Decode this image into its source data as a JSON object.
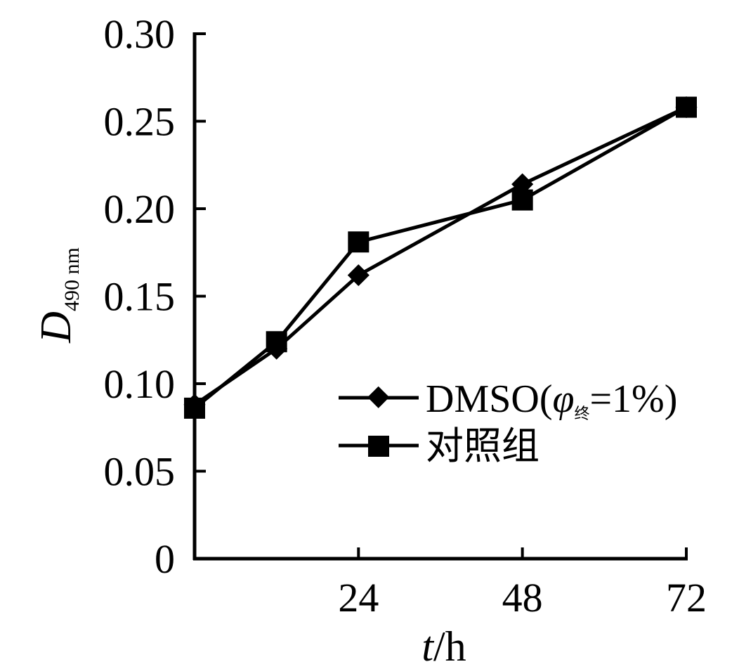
{
  "chart_data": {
    "type": "line",
    "x": [
      0,
      12,
      24,
      48,
      72
    ],
    "xlim": [
      0,
      72
    ],
    "ylim": [
      0,
      0.3
    ],
    "xticks": [
      24,
      48,
      72
    ],
    "xtick_labels": [
      "24",
      "48",
      "72"
    ],
    "yticks": [
      0,
      0.05,
      0.1,
      0.15,
      0.2,
      0.25,
      0.3
    ],
    "ytick_labels": [
      "0",
      "0.05",
      "0.10",
      "0.15",
      "0.20",
      "0.25",
      "0.30"
    ],
    "xlabel": {
      "italic": "t",
      "rest": "/h"
    },
    "ylabel": {
      "main": "D",
      "sub": "490 nm"
    },
    "legend_position": "right",
    "series": [
      {
        "name": "DMSO(φ终=1%)",
        "name_parts": {
          "prefix": "DMSO(",
          "phi": "φ",
          "sub": "终",
          "suffix": "=1%)"
        },
        "marker": "diamond",
        "values": [
          0.088,
          0.12,
          0.162,
          0.214,
          0.258
        ]
      },
      {
        "name": "对照组",
        "marker": "square",
        "values": [
          0.086,
          0.124,
          0.181,
          0.205,
          0.258
        ]
      }
    ]
  }
}
